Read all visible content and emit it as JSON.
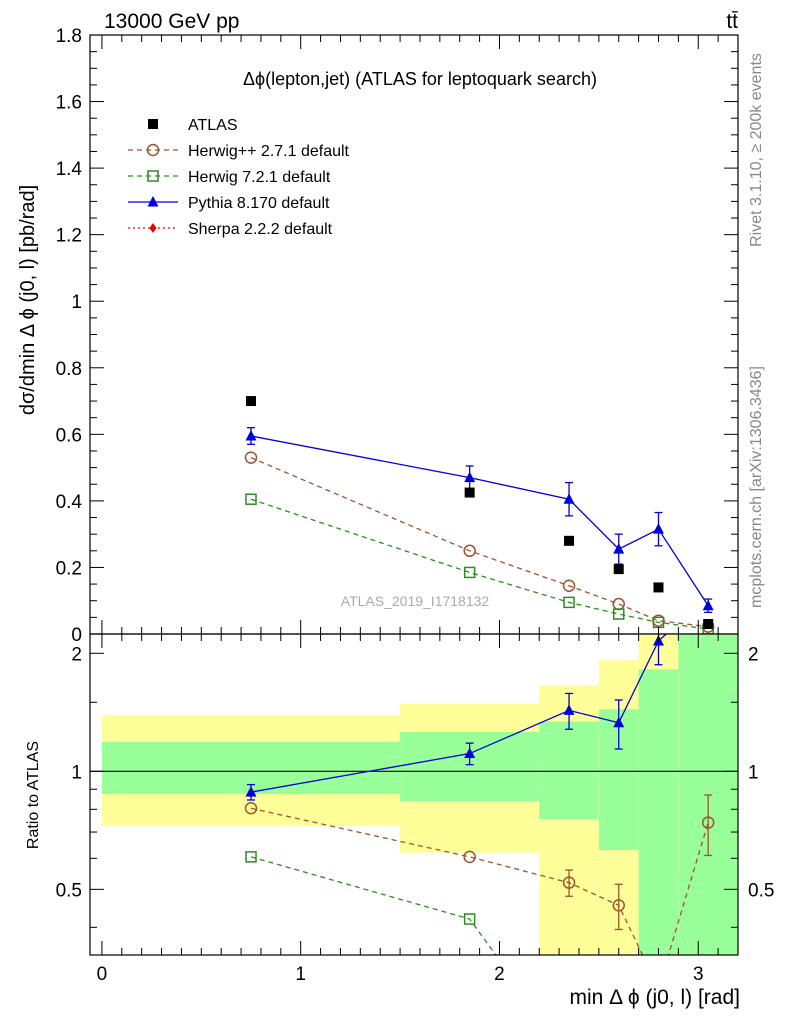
{
  "header": {
    "energy_label": "13000 GeV pp",
    "process_label": "tt̄"
  },
  "side_labels": {
    "rivet": "Rivet 3.1.10, ≥ 200k events",
    "mcplots": "mcplots.cern.ch [arXiv:1306.3436]"
  },
  "chart_data": [
    {
      "type": "line",
      "title": "Δϕ(lepton,jet) (ATLAS for leptoquark search)",
      "ylabel": "dσ/dmin Δ ϕ (j0, l) [pb/rad]",
      "watermark": "ATLAS_2019_I1718132",
      "ylim": [
        0,
        1.8
      ],
      "yticks": [
        "0",
        "0.2",
        "0.4",
        "0.6",
        "0.8",
        "1",
        "1.2",
        "1.4",
        "1.6",
        "1.8"
      ],
      "xlim": [
        -0.06,
        3.2
      ],
      "legend_placement": "top-left",
      "series": [
        {
          "name": "ATLAS",
          "style": "data",
          "color": "#000000",
          "x": [
            0.75,
            1.85,
            2.35,
            2.6,
            2.8,
            3.05
          ],
          "y": [
            0.7,
            0.425,
            0.28,
            0.195,
            0.14,
            0.03
          ]
        },
        {
          "name": "Herwig++ 2.7.1 default",
          "style": "open-circle-dashed",
          "color": "#a0522d",
          "x": [
            0.75,
            1.85,
            2.35,
            2.6,
            2.8,
            3.05
          ],
          "y": [
            0.53,
            0.25,
            0.145,
            0.09,
            0.04,
            0.022
          ]
        },
        {
          "name": "Herwig 7.2.1 default",
          "style": "open-square-dashed",
          "color": "#2e8b22",
          "x": [
            0.75,
            1.85,
            2.35,
            2.6,
            2.8,
            3.05
          ],
          "y": [
            0.405,
            0.185,
            0.095,
            0.06,
            0.035,
            0.015
          ]
        },
        {
          "name": "Pythia 8.170 default",
          "style": "triangle-solid",
          "color": "#0000dd",
          "x": [
            0.75,
            1.85,
            2.35,
            2.6,
            2.8,
            3.05
          ],
          "y": [
            0.595,
            0.47,
            0.405,
            0.255,
            0.315,
            0.085
          ],
          "err": [
            0.025,
            0.035,
            0.05,
            0.045,
            0.05,
            0.02
          ]
        },
        {
          "name": "Sherpa 2.2.2 default",
          "style": "diamond-dotted",
          "color": "#ee0000",
          "x": [],
          "y": []
        }
      ]
    },
    {
      "type": "line",
      "ylabel": "Ratio to ATLAS",
      "xlabel": "min Δ ϕ (j0, l) [rad]",
      "ylim": [
        0.34,
        2.24
      ],
      "xlim": [
        -0.06,
        3.2
      ],
      "yticks": [
        "0.5",
        "1",
        "2"
      ],
      "xticks": [
        "0",
        "1",
        "2",
        "3"
      ],
      "bands": [
        {
          "x0": 0.0,
          "x1": 1.5,
          "yellow": [
            0.725,
            1.39
          ],
          "green": [
            0.875,
            1.19
          ]
        },
        {
          "x0": 1.5,
          "x1": 2.2,
          "yellow": [
            0.62,
            1.49
          ],
          "green": [
            0.84,
            1.26
          ]
        },
        {
          "x0": 2.2,
          "x1": 2.5,
          "yellow": [
            0.34,
            1.66
          ],
          "green": [
            0.755,
            1.34
          ]
        },
        {
          "x0": 2.5,
          "x1": 2.7,
          "yellow": [
            0.34,
            1.92
          ],
          "green": [
            0.63,
            1.44
          ]
        },
        {
          "x0": 2.7,
          "x1": 2.9,
          "yellow": [
            0.34,
            2.24
          ],
          "green": [
            0.34,
            1.82
          ]
        },
        {
          "x0": 2.9,
          "x1": 3.2,
          "yellow": [
            0.34,
            2.24
          ],
          "green": [
            0.34,
            2.24
          ]
        }
      ],
      "series": [
        {
          "name": "Herwig++ 2.7.1 default",
          "color": "#a0522d",
          "x": [
            0.75,
            1.85,
            2.35,
            2.6,
            2.8,
            3.05
          ],
          "y": [
            0.805,
            0.605,
            0.52,
            0.455,
            0.28,
            0.74
          ],
          "err": [
            0,
            0,
            0.04,
            0.06,
            0,
            0.13
          ]
        },
        {
          "name": "Herwig 7.2.1 default",
          "color": "#2e8b22",
          "x": [
            0.75,
            1.85,
            2.0
          ],
          "y": [
            0.605,
            0.42,
            0.33
          ],
          "err": [
            0,
            0,
            0
          ]
        },
        {
          "name": "Pythia 8.170 default",
          "color": "#0000dd",
          "x": [
            0.75,
            1.85,
            2.35,
            2.6,
            2.8,
            3.05
          ],
          "y": [
            0.885,
            1.11,
            1.43,
            1.33,
            2.15,
            2.8
          ],
          "err": [
            0.04,
            0.07,
            0.15,
            0.19,
            0.28,
            0
          ]
        }
      ]
    }
  ]
}
